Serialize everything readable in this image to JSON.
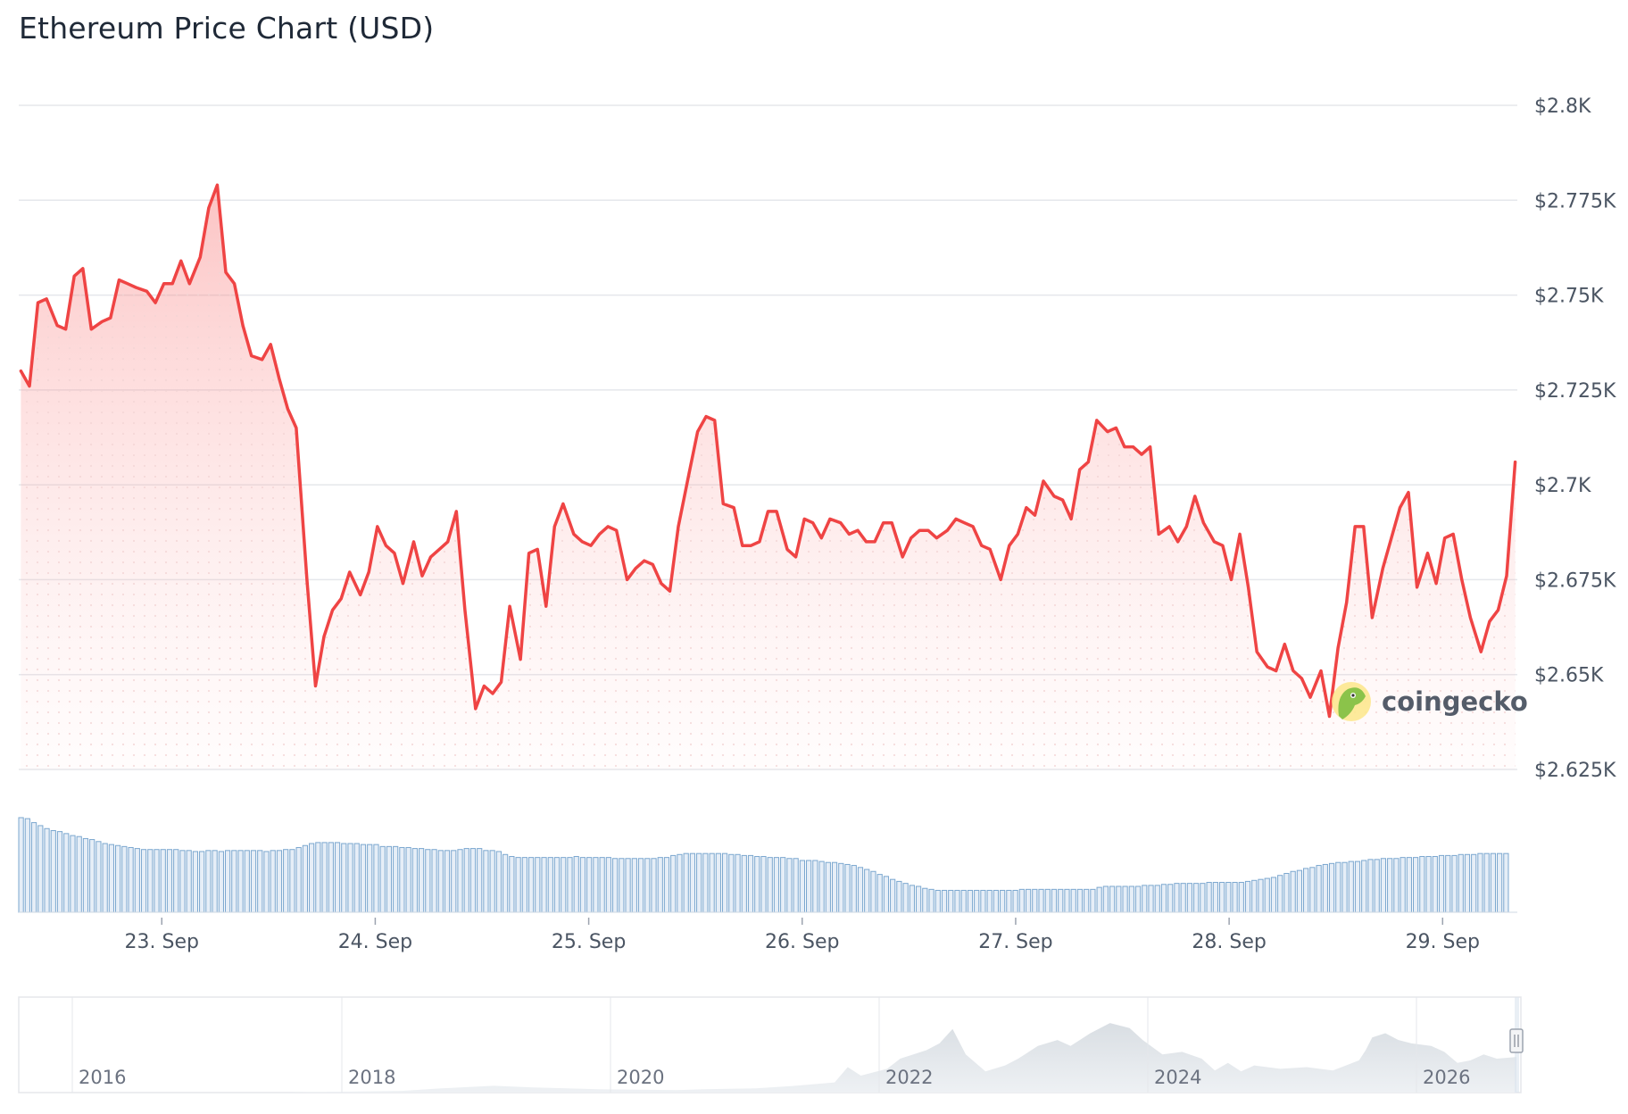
{
  "chart_data": {
    "type": "line",
    "title": "Ethereum Price Chart (USD)",
    "ylim": [
      2625,
      2800
    ],
    "yticks": [
      {
        "value": 2800,
        "label": "$2.8K"
      },
      {
        "value": 2775,
        "label": "$2.775K"
      },
      {
        "value": 2750,
        "label": "$2.75K"
      },
      {
        "value": 2725,
        "label": "$2.725K"
      },
      {
        "value": 2700,
        "label": "$2.7K"
      },
      {
        "value": 2675,
        "label": "$2.675K"
      },
      {
        "value": 2650,
        "label": "$2.65K"
      },
      {
        "value": 2625,
        "label": "$2.625K"
      }
    ],
    "xlim": [
      22.33,
      29.35
    ],
    "xticks": [
      {
        "value": 23,
        "label": "23. Sep"
      },
      {
        "value": 24,
        "label": "24. Sep"
      },
      {
        "value": 25,
        "label": "25. Sep"
      },
      {
        "value": 26,
        "label": "26. Sep"
      },
      {
        "value": 27,
        "label": "27. Sep"
      },
      {
        "value": 28,
        "label": "28. Sep"
      },
      {
        "value": 29,
        "label": "29. Sep"
      }
    ],
    "grid": true,
    "series": [
      {
        "color": "#ef4444",
        "points": [
          [
            22.34,
            2730
          ],
          [
            22.38,
            2726
          ],
          [
            22.42,
            2748
          ],
          [
            22.46,
            2749
          ],
          [
            22.51,
            2742
          ],
          [
            22.55,
            2741
          ],
          [
            22.59,
            2755
          ],
          [
            22.63,
            2757
          ],
          [
            22.67,
            2741
          ],
          [
            22.72,
            2743
          ],
          [
            22.76,
            2744
          ],
          [
            22.8,
            2754
          ],
          [
            22.84,
            2753
          ],
          [
            22.88,
            2752
          ],
          [
            22.93,
            2751
          ],
          [
            22.97,
            2748
          ],
          [
            23.01,
            2753
          ],
          [
            23.05,
            2753
          ],
          [
            23.09,
            2759
          ],
          [
            23.13,
            2753
          ],
          [
            23.18,
            2760
          ],
          [
            23.22,
            2773
          ],
          [
            23.26,
            2779
          ],
          [
            23.3,
            2756
          ],
          [
            23.34,
            2753
          ],
          [
            23.38,
            2742
          ],
          [
            23.42,
            2734
          ],
          [
            23.47,
            2733
          ],
          [
            23.51,
            2737
          ],
          [
            23.55,
            2728
          ],
          [
            23.59,
            2720
          ],
          [
            23.63,
            2715
          ],
          [
            23.68,
            2675
          ],
          [
            23.72,
            2647
          ],
          [
            23.76,
            2660
          ],
          [
            23.8,
            2667
          ],
          [
            23.84,
            2670
          ],
          [
            23.88,
            2677
          ],
          [
            23.93,
            2671
          ],
          [
            23.97,
            2677
          ],
          [
            24.01,
            2689
          ],
          [
            24.05,
            2684
          ],
          [
            24.09,
            2682
          ],
          [
            24.13,
            2674
          ],
          [
            24.18,
            2685
          ],
          [
            24.22,
            2676
          ],
          [
            24.26,
            2681
          ],
          [
            24.3,
            2683
          ],
          [
            24.34,
            2685
          ],
          [
            24.38,
            2693
          ],
          [
            24.42,
            2667
          ],
          [
            24.47,
            2641
          ],
          [
            24.51,
            2647
          ],
          [
            24.55,
            2645
          ],
          [
            24.59,
            2648
          ],
          [
            24.63,
            2668
          ],
          [
            24.68,
            2654
          ],
          [
            24.72,
            2682
          ],
          [
            24.76,
            2683
          ],
          [
            24.8,
            2668
          ],
          [
            24.84,
            2689
          ],
          [
            24.88,
            2695
          ],
          [
            24.93,
            2687
          ],
          [
            24.97,
            2685
          ],
          [
            25.01,
            2684
          ],
          [
            25.05,
            2687
          ],
          [
            25.09,
            2689
          ],
          [
            25.13,
            2688
          ],
          [
            25.18,
            2675
          ],
          [
            25.22,
            2678
          ],
          [
            25.26,
            2680
          ],
          [
            25.3,
            2679
          ],
          [
            25.34,
            2674
          ],
          [
            25.38,
            2672
          ],
          [
            25.42,
            2689
          ],
          [
            25.47,
            2703
          ],
          [
            25.51,
            2714
          ],
          [
            25.55,
            2718
          ],
          [
            25.59,
            2717
          ],
          [
            25.63,
            2695
          ],
          [
            25.68,
            2694
          ],
          [
            25.72,
            2684
          ],
          [
            25.76,
            2684
          ],
          [
            25.8,
            2685
          ],
          [
            25.84,
            2693
          ],
          [
            25.88,
            2693
          ],
          [
            25.93,
            2683
          ],
          [
            25.97,
            2681
          ],
          [
            26.01,
            2691
          ],
          [
            26.05,
            2690
          ],
          [
            26.09,
            2686
          ],
          [
            26.13,
            2691
          ],
          [
            26.18,
            2690
          ],
          [
            26.22,
            2687
          ],
          [
            26.26,
            2688
          ],
          [
            26.3,
            2685
          ],
          [
            26.34,
            2685
          ],
          [
            26.38,
            2690
          ],
          [
            26.42,
            2690
          ],
          [
            26.47,
            2681
          ],
          [
            26.51,
            2686
          ],
          [
            26.55,
            2688
          ],
          [
            26.59,
            2688
          ],
          [
            26.63,
            2686
          ],
          [
            26.68,
            2688
          ],
          [
            26.72,
            2691
          ],
          [
            26.76,
            2690
          ],
          [
            26.8,
            2689
          ],
          [
            26.84,
            2684
          ],
          [
            26.88,
            2683
          ],
          [
            26.93,
            2675
          ],
          [
            26.97,
            2684
          ],
          [
            27.01,
            2687
          ],
          [
            27.05,
            2694
          ],
          [
            27.09,
            2692
          ],
          [
            27.13,
            2701
          ],
          [
            27.18,
            2697
          ],
          [
            27.22,
            2696
          ],
          [
            27.26,
            2691
          ],
          [
            27.3,
            2704
          ],
          [
            27.34,
            2706
          ],
          [
            27.38,
            2717
          ],
          [
            27.43,
            2714
          ],
          [
            27.47,
            2715
          ],
          [
            27.51,
            2710
          ],
          [
            27.55,
            2710
          ],
          [
            27.59,
            2708
          ],
          [
            27.63,
            2710
          ],
          [
            27.67,
            2687
          ],
          [
            27.72,
            2689
          ],
          [
            27.76,
            2685
          ],
          [
            27.8,
            2689
          ],
          [
            27.84,
            2697
          ],
          [
            27.88,
            2690
          ],
          [
            27.93,
            2685
          ],
          [
            27.97,
            2684
          ],
          [
            28.01,
            2675
          ],
          [
            28.05,
            2687
          ],
          [
            28.09,
            2673
          ],
          [
            28.13,
            2656
          ],
          [
            28.18,
            2652
          ],
          [
            28.22,
            2651
          ],
          [
            28.26,
            2658
          ],
          [
            28.3,
            2651
          ],
          [
            28.34,
            2649
          ],
          [
            28.38,
            2644
          ],
          [
            28.43,
            2651
          ],
          [
            28.47,
            2639
          ],
          [
            28.51,
            2657
          ],
          [
            28.55,
            2669
          ],
          [
            28.59,
            2689
          ],
          [
            28.63,
            2689
          ],
          [
            28.67,
            2665
          ],
          [
            28.72,
            2678
          ],
          [
            28.76,
            2686
          ],
          [
            28.8,
            2694
          ],
          [
            28.84,
            2698
          ],
          [
            28.88,
            2673
          ],
          [
            28.93,
            2682
          ],
          [
            28.97,
            2674
          ],
          [
            29.01,
            2686
          ],
          [
            29.05,
            2687
          ],
          [
            29.09,
            2675
          ],
          [
            29.13,
            2665
          ],
          [
            29.18,
            2656
          ],
          [
            29.22,
            2664
          ],
          [
            29.26,
            2667
          ],
          [
            29.3,
            2676
          ],
          [
            29.34,
            2706
          ]
        ]
      }
    ],
    "volume": [
      95,
      94,
      90,
      87,
      84,
      82,
      81,
      79,
      77,
      76,
      74,
      73,
      71,
      69,
      68,
      67,
      66,
      65,
      64,
      63,
      63,
      63,
      63,
      63,
      63,
      62,
      62,
      61,
      61,
      62,
      62,
      61,
      62,
      62,
      62,
      62,
      62,
      62,
      61,
      62,
      62,
      63,
      63,
      65,
      67,
      69,
      70,
      70,
      70,
      70,
      69,
      69,
      69,
      68,
      68,
      68,
      66,
      66,
      66,
      65,
      65,
      64,
      64,
      63,
      63,
      62,
      62,
      62,
      63,
      64,
      64,
      64,
      62,
      62,
      61,
      58,
      56,
      55,
      55,
      55,
      55,
      55,
      55,
      55,
      55,
      55,
      56,
      55,
      55,
      55,
      55,
      55,
      54,
      54,
      54,
      54,
      54,
      54,
      54,
      55,
      55,
      57,
      58,
      59,
      59,
      59,
      59,
      59,
      59,
      59,
      58,
      58,
      57,
      57,
      56,
      56,
      55,
      55,
      55,
      54,
      54,
      52,
      52,
      52,
      51,
      50,
      50,
      49,
      48,
      47,
      45,
      43,
      41,
      38,
      36,
      33,
      31,
      29,
      27,
      26,
      24,
      23,
      22,
      22,
      22,
      22,
      22,
      22,
      22,
      22,
      22,
      22,
      22,
      22,
      22,
      23,
      23,
      23,
      23,
      23,
      23,
      23,
      23,
      23,
      23,
      23,
      23,
      25,
      26,
      26,
      26,
      26,
      26,
      26,
      27,
      27,
      27,
      28,
      28,
      29,
      29,
      29,
      29,
      29,
      30,
      30,
      30,
      30,
      30,
      30,
      31,
      32,
      33,
      34,
      35,
      37,
      39,
      41,
      42,
      44,
      45,
      47,
      48,
      49,
      50,
      50,
      51,
      51,
      52,
      53,
      53,
      54,
      54,
      54,
      55,
      55,
      55,
      56,
      56,
      56,
      57,
      57,
      57,
      58,
      58,
      58,
      59,
      59,
      59,
      59,
      59
    ],
    "navigator": {
      "ticks": [
        "2016",
        "2018",
        "2020",
        "2022",
        "2024",
        "2026"
      ]
    }
  },
  "watermark": {
    "text": "coingecko",
    "icon": "coingecko-gecko-icon"
  }
}
